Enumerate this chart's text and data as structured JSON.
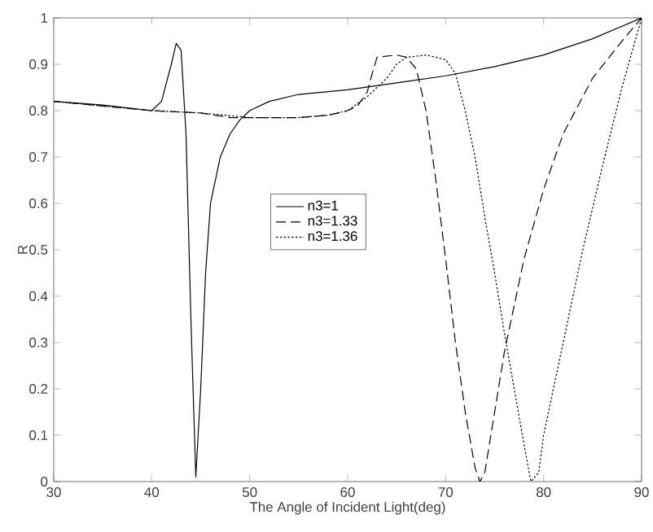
{
  "chart_data": {
    "type": "line",
    "xlabel": "The Angle of Incident Light(deg)",
    "ylabel": "R",
    "xlim": [
      30,
      90
    ],
    "ylim": [
      0,
      1
    ],
    "xticks": [
      30,
      40,
      50,
      60,
      70,
      80,
      90
    ],
    "yticks": [
      0,
      0.1,
      0.2,
      0.3,
      0.4,
      0.5,
      0.6,
      0.7,
      0.8,
      0.9,
      1
    ],
    "legend": "center",
    "grid": false,
    "series": [
      {
        "name": "n3=1",
        "color": "#000000",
        "line_style": "solid",
        "x": [
          30,
          35,
          40,
          41,
          42,
          42.5,
          43,
          43.5,
          44,
          44.5,
          45,
          45.5,
          46,
          47,
          48,
          49,
          50,
          52,
          55,
          60,
          65,
          70,
          75,
          80,
          85,
          90
        ],
        "values": [
          0.82,
          0.812,
          0.8,
          0.82,
          0.9,
          0.945,
          0.93,
          0.75,
          0.35,
          0.01,
          0.2,
          0.45,
          0.6,
          0.7,
          0.75,
          0.78,
          0.8,
          0.82,
          0.835,
          0.845,
          0.86,
          0.875,
          0.895,
          0.92,
          0.955,
          1.0
        ]
      },
      {
        "name": "n3=1.33",
        "color": "#000000",
        "line_style": "dashed",
        "x": [
          30,
          35,
          40,
          45,
          48,
          50,
          55,
          58,
          60,
          61,
          62,
          62.5,
          63,
          65,
          66,
          67,
          68,
          69,
          70,
          71,
          72,
          73,
          73.5,
          74,
          75,
          76,
          78,
          80,
          82,
          85,
          88,
          90
        ],
        "values": [
          0.82,
          0.81,
          0.8,
          0.795,
          0.785,
          0.785,
          0.785,
          0.79,
          0.8,
          0.81,
          0.84,
          0.88,
          0.915,
          0.92,
          0.915,
          0.89,
          0.8,
          0.65,
          0.48,
          0.3,
          0.15,
          0.03,
          0.0,
          0.02,
          0.15,
          0.28,
          0.48,
          0.63,
          0.75,
          0.87,
          0.95,
          1.0
        ]
      },
      {
        "name": "n3=1.36",
        "color": "#000000",
        "line_style": "dotted",
        "x": [
          30,
          35,
          40,
          45,
          50,
          55,
          58,
          60,
          62,
          64,
          65,
          66,
          68,
          70,
          71,
          72,
          73,
          74,
          75,
          76,
          77,
          78,
          78.7,
          79.5,
          80,
          82,
          84,
          86,
          88,
          90
        ],
        "values": [
          0.82,
          0.81,
          0.8,
          0.795,
          0.785,
          0.785,
          0.79,
          0.8,
          0.83,
          0.87,
          0.9,
          0.915,
          0.92,
          0.91,
          0.88,
          0.8,
          0.7,
          0.57,
          0.45,
          0.32,
          0.2,
          0.08,
          0.0,
          0.02,
          0.1,
          0.3,
          0.5,
          0.68,
          0.85,
          1.0
        ]
      }
    ]
  }
}
